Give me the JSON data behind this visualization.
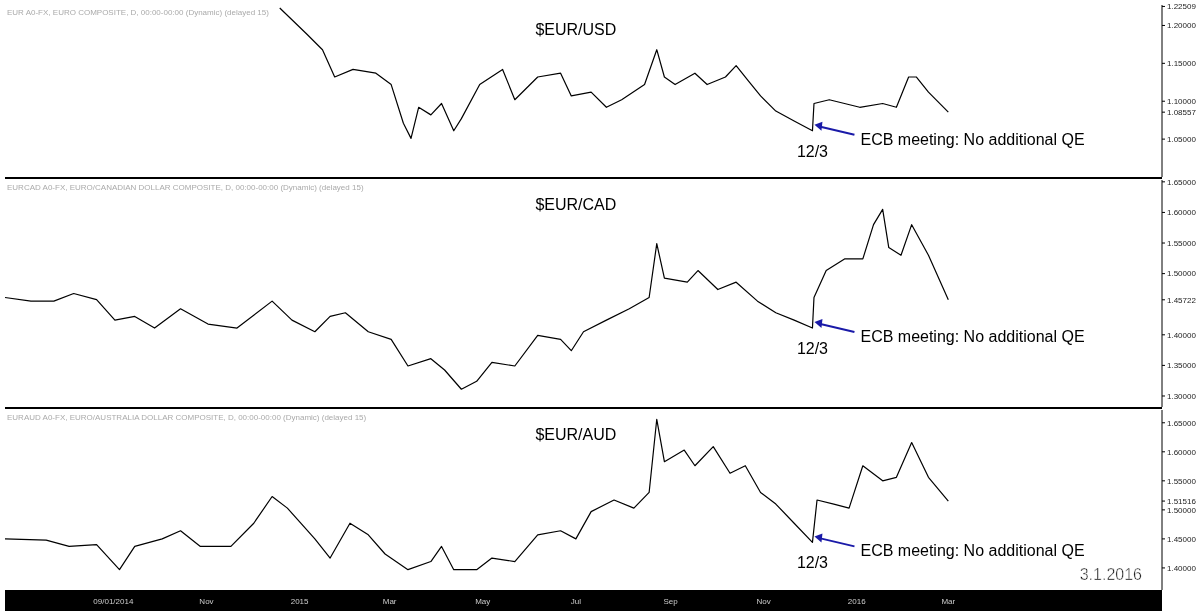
{
  "chart_data": [
    {
      "type": "line",
      "title": "$EUR/USD",
      "annotations": [
        "EUR A0-FX, EURO COMPOSITE, D, 00:00-00:00 (Dynamic) (delayed 15)",
        {
          "text": "ECB meeting: No additional QE",
          "x": "2015-12-03",
          "y": 1.061
        },
        {
          "text": "12/3",
          "x": "2015-12-03",
          "y": 1.061
        }
      ],
      "x": [
        "2014-12-19",
        "2015-01-06",
        "2015-01-16",
        "2015-01-24",
        "2015-02-05",
        "2015-02-20",
        "2015-03-02",
        "2015-03-10",
        "2015-03-15",
        "2015-03-20",
        "2015-03-28",
        "2015-04-04",
        "2015-04-12",
        "2015-04-17",
        "2015-04-29",
        "2015-05-14",
        "2015-05-22",
        "2015-06-06",
        "2015-06-21",
        "2015-06-28",
        "2015-07-11",
        "2015-07-21",
        "2015-07-31",
        "2015-08-15",
        "2015-08-23",
        "2015-08-28",
        "2015-09-04",
        "2015-09-17",
        "2015-09-25",
        "2015-10-07",
        "2015-10-14",
        "2015-10-22",
        "2015-10-30",
        "2015-11-09",
        "2015-11-21",
        "2015-12-03",
        "2015-12-04",
        "2015-12-14",
        "2015-12-24",
        "2016-01-03",
        "2016-01-18",
        "2016-01-27",
        "2016-02-04",
        "2016-02-09",
        "2016-02-17",
        "2016-03-01"
      ],
      "series": [
        {
          "color": "#000000",
          "values": [
            1.223,
            1.188,
            1.168,
            1.132,
            1.142,
            1.137,
            1.122,
            1.071,
            1.051,
            1.092,
            1.082,
            1.097,
            1.061,
            1.077,
            1.122,
            1.142,
            1.102,
            1.132,
            1.137,
            1.107,
            1.112,
            1.092,
            1.102,
            1.122,
            1.168,
            1.132,
            1.122,
            1.137,
            1.122,
            1.132,
            1.147,
            1.127,
            1.107,
            1.087,
            1.074,
            1.061,
            1.097,
            1.102,
            1.097,
            1.092,
            1.097,
            1.092,
            1.132,
            1.132,
            1.112,
            1.08557
          ]
        }
      ],
      "xlim": [
        "2014-06-22",
        "2016-07-19"
      ],
      "ylim": [
        1.0,
        1.227
      ],
      "yticks": [
        {
          "value": 1.05,
          "label": "1.05000"
        },
        {
          "value": 1.08557,
          "label": "1.08557"
        },
        {
          "value": 1.1,
          "label": "1.10000"
        },
        {
          "value": 1.15,
          "label": "1.15000"
        },
        {
          "value": 1.2,
          "label": "1.20000"
        },
        {
          "value": 1.22509,
          "label": "1.22509"
        }
      ],
      "tick_labels": "y",
      "marker": "none",
      "grid": false
    },
    {
      "type": "line",
      "title": "$EUR/CAD",
      "annotations": [
        "EURCAD A0-FX, EURO/CANADIAN DOLLAR COMPOSITE, D, 00:00-00:00 (Dynamic) (delayed 15)",
        {
          "text": "ECB meeting: No additional QE",
          "x": "2015-12-03",
          "y": 1.411
        },
        {
          "text": "12/3",
          "x": "2015-12-03",
          "y": 1.411
        }
      ],
      "x": [
        "2014-06-22",
        "2014-07-09",
        "2014-07-24",
        "2014-08-06",
        "2014-08-21",
        "2014-09-02",
        "2014-09-15",
        "2014-09-28",
        "2014-10-15",
        "2014-11-02",
        "2014-11-21",
        "2014-12-14",
        "2014-12-27",
        "2015-01-11",
        "2015-01-21",
        "2015-01-31",
        "2015-02-15",
        "2015-03-02",
        "2015-03-13",
        "2015-03-28",
        "2015-04-06",
        "2015-04-17",
        "2015-04-27",
        "2015-05-07",
        "2015-05-22",
        "2015-06-06",
        "2015-06-21",
        "2015-06-28",
        "2015-07-06",
        "2015-07-21",
        "2015-08-05",
        "2015-08-18",
        "2015-08-23",
        "2015-08-28",
        "2015-09-12",
        "2015-09-19",
        "2015-10-02",
        "2015-10-14",
        "2015-10-28",
        "2015-11-09",
        "2015-11-21",
        "2015-12-03",
        "2015-12-04",
        "2015-12-12",
        "2015-12-24",
        "2016-01-05",
        "2016-01-12",
        "2016-01-18",
        "2016-01-22",
        "2016-01-30",
        "2016-02-06",
        "2016-02-17",
        "2016-03-01"
      ],
      "series": [
        {
          "color": "#000000",
          "values": [
            1.461,
            1.455,
            1.455,
            1.4675,
            1.4575,
            1.424,
            1.43,
            1.411,
            1.4425,
            1.4175,
            1.411,
            1.455,
            1.424,
            1.405,
            1.43,
            1.436,
            1.405,
            1.3925,
            1.349,
            1.361,
            1.3425,
            1.311,
            1.324,
            1.355,
            1.349,
            1.399,
            1.3925,
            1.374,
            1.405,
            1.424,
            1.4425,
            1.461,
            1.549,
            1.4925,
            1.486,
            1.505,
            1.474,
            1.486,
            1.455,
            1.436,
            1.424,
            1.411,
            1.461,
            1.505,
            1.524,
            1.524,
            1.58,
            1.605,
            1.5425,
            1.53,
            1.58,
            1.53,
            1.45722
          ]
        }
      ],
      "xlim": [
        "2014-06-22",
        "2016-07-19"
      ],
      "ylim": [
        1.282,
        1.653
      ],
      "yticks": [
        {
          "value": 1.3,
          "label": "1.30000"
        },
        {
          "value": 1.35,
          "label": "1.35000"
        },
        {
          "value": 1.4,
          "label": "1.40000"
        },
        {
          "value": 1.45722,
          "label": "1.45722"
        },
        {
          "value": 1.5,
          "label": "1.50000"
        },
        {
          "value": 1.55,
          "label": "1.55000"
        },
        {
          "value": 1.6,
          "label": "1.60000"
        },
        {
          "value": 1.65,
          "label": "1.65000"
        }
      ],
      "tick_labels": "y",
      "marker": "none",
      "grid": false
    },
    {
      "type": "line",
      "title": "$EUR/AUD",
      "annotations": [
        "EURAUD A0-FX, EURO/AUSTRALIA DOLLAR COMPOSITE, D, 00:00-00:00 (Dynamic) (delayed 15)",
        {
          "text": "ECB meeting: No additional QE",
          "x": "2015-12-03",
          "y": 1.444
        },
        {
          "text": "12/3",
          "x": "2015-12-03",
          "y": 1.444
        },
        "3.1.2016"
      ],
      "x": [
        "2014-06-22",
        "2014-07-19",
        "2014-08-03",
        "2014-08-21",
        "2014-09-05",
        "2014-09-15",
        "2014-10-03",
        "2014-10-15",
        "2014-10-28",
        "2014-11-17",
        "2014-12-02",
        "2014-12-14",
        "2014-12-24",
        "2015-01-11",
        "2015-01-21",
        "2015-02-03",
        "2015-02-15",
        "2015-02-26",
        "2015-03-13",
        "2015-03-28",
        "2015-04-04",
        "2015-04-12",
        "2015-04-27",
        "2015-05-07",
        "2015-05-22",
        "2015-06-06",
        "2015-06-21",
        "2015-07-01",
        "2015-07-11",
        "2015-07-26",
        "2015-08-08",
        "2015-08-18",
        "2015-08-23",
        "2015-08-28",
        "2015-09-10",
        "2015-09-17",
        "2015-09-29",
        "2015-10-10",
        "2015-10-20",
        "2015-10-30",
        "2015-11-09",
        "2015-11-21",
        "2015-12-03",
        "2015-12-06",
        "2015-12-17",
        "2015-12-27",
        "2016-01-05",
        "2016-01-18",
        "2016-01-27",
        "2016-02-06",
        "2016-02-17",
        "2016-03-01"
      ],
      "series": [
        {
          "color": "#000000",
          "values": [
            1.45,
            1.448,
            1.437,
            1.44,
            1.397,
            1.437,
            1.45,
            1.464,
            1.437,
            1.437,
            1.477,
            1.523,
            1.503,
            1.45,
            1.417,
            1.477,
            1.457,
            1.424,
            1.397,
            1.411,
            1.437,
            1.397,
            1.397,
            1.417,
            1.411,
            1.457,
            1.464,
            1.45,
            1.497,
            1.517,
            1.503,
            1.53,
            1.656,
            1.583,
            1.603,
            1.576,
            1.609,
            1.563,
            1.576,
            1.53,
            1.51,
            1.477,
            1.444,
            1.517,
            1.51,
            1.503,
            1.576,
            1.55,
            1.556,
            1.616,
            1.556,
            1.51516
          ]
        }
      ],
      "xlim": [
        "2014-06-22",
        "2016-07-19"
      ],
      "xticks": [
        {
          "value": "2014-09-01",
          "label": "09/01/2014"
        },
        {
          "value": "2014-11-01",
          "label": "Nov"
        },
        {
          "value": "2015-01-01",
          "label": "2015"
        },
        {
          "value": "2015-03-01",
          "label": "Mar"
        },
        {
          "value": "2015-05-01",
          "label": "May"
        },
        {
          "value": "2015-07-01",
          "label": "Jul"
        },
        {
          "value": "2015-09-01",
          "label": "Sep"
        },
        {
          "value": "2015-11-01",
          "label": "Nov"
        },
        {
          "value": "2016-01-01",
          "label": "2016"
        },
        {
          "value": "2016-03-01",
          "label": "Mar"
        }
      ],
      "ylim": [
        1.362,
        1.672
      ],
      "yticks": [
        {
          "value": 1.4,
          "label": "1.40000"
        },
        {
          "value": 1.45,
          "label": "1.45000"
        },
        {
          "value": 1.5,
          "label": "1.50000"
        },
        {
          "value": 1.51516,
          "label": "1.51516"
        },
        {
          "value": 1.55,
          "label": "1.55000"
        },
        {
          "value": 1.6,
          "label": "1.60000"
        },
        {
          "value": 1.65,
          "label": "1.65000"
        }
      ],
      "marker": "none",
      "grid": false
    }
  ]
}
